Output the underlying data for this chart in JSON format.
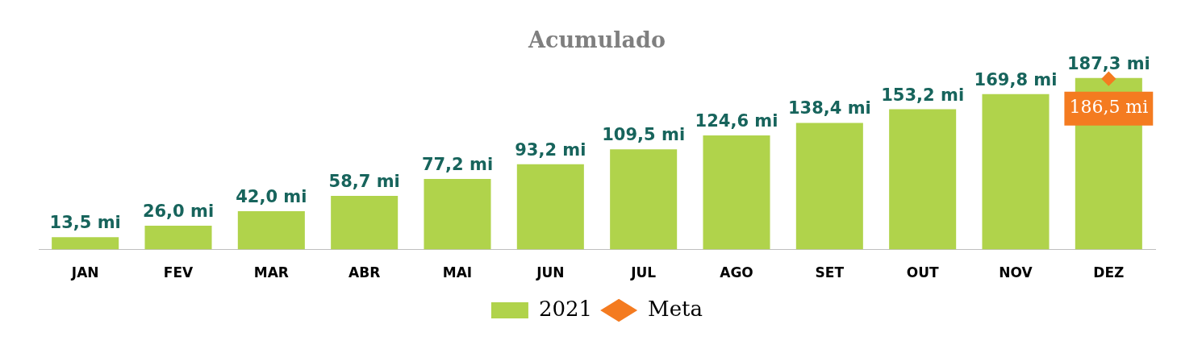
{
  "chart_data": {
    "type": "bar",
    "title": "Acumulado",
    "categories": [
      "JAN",
      "FEV",
      "MAR",
      "ABR",
      "MAI",
      "JUN",
      "JUL",
      "AGO",
      "SET",
      "OUT",
      "NOV",
      "DEZ"
    ],
    "series": [
      {
        "name": "2021",
        "color": "#b0d34b",
        "values": [
          13.5,
          26.0,
          42.0,
          58.7,
          77.2,
          93.2,
          109.5,
          124.6,
          138.4,
          153.2,
          169.8,
          187.3
        ],
        "value_labels": [
          "13,5 mi",
          "26,0 mi",
          "42,0 mi",
          "58,7 mi",
          "77,2 mi",
          "93,2 mi",
          "109,5 mi",
          "124,6 mi",
          "138,4 mi",
          "153,2 mi",
          "169,8 mi",
          "187,3 mi"
        ]
      },
      {
        "name": "Meta",
        "type": "line",
        "color": "#f47b20",
        "marker": "diamond",
        "values": [
          null,
          null,
          null,
          null,
          null,
          null,
          null,
          null,
          null,
          null,
          null,
          186.5
        ],
        "value_labels": [
          null,
          null,
          null,
          null,
          null,
          null,
          null,
          null,
          null,
          null,
          null,
          "186,5 mi"
        ]
      }
    ],
    "grid": false,
    "legend": "bottom"
  }
}
